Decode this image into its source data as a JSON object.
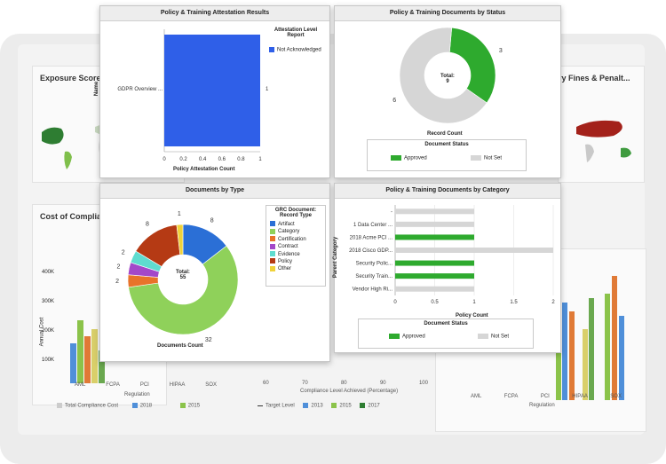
{
  "background": {
    "card_left_title": "Exposure Score b",
    "card_right_title": "ry Fines & Penalt...",
    "card_cost_title": "Cost of Complianc",
    "bottom_legend_left": [
      "Total Compliance Cost",
      "2018",
      "2015"
    ],
    "bottom_legend_mid": [
      "Target Level",
      "2013",
      "2015",
      "2017"
    ],
    "bottom_axis_left": [
      "AML",
      "FCPA",
      "PCI",
      "HIPAA",
      "SOX"
    ],
    "bottom_axis_right": [
      "AML",
      "FCPA",
      "PCI",
      "HIPAA",
      "SOX"
    ],
    "x_title_left": "Regulation",
    "x_title_mid": "Compliance Level Achieved (Percentage)",
    "x_title_right": "Regulation",
    "mid_ticks": [
      "60",
      "70",
      "80",
      "90",
      "100"
    ],
    "left_y_ticks": [
      "400K",
      "300K",
      "200K",
      "100K"
    ],
    "left_y_label": "Annual Cost"
  },
  "panel_attestation": {
    "title": "Policy & Training Attestation Results",
    "y_title": "Name",
    "x_title": "Policy Attestation Count",
    "legend_title": "Attestation Level Report",
    "legend_items": [
      {
        "label": "Not Acknowledged",
        "color": "#2f5fe8"
      }
    ]
  },
  "panel_docs_status": {
    "title": "Policy & Training Documents by Status",
    "center_label": "Total:",
    "center_value": "9",
    "x_title": "Record Count",
    "legend_title": "Document Status",
    "legend_items": [
      {
        "label": "Approved",
        "color": "#2eaa2e"
      },
      {
        "label": "Not Set",
        "color": "#d6d6d6"
      }
    ]
  },
  "panel_docs_type": {
    "title": "Documents by Type",
    "center_label": "Total:",
    "center_value": "55",
    "x_title": "Documents Count",
    "legend_title": "GRC Document: Record Type",
    "legend_items": [
      {
        "label": "Artifact",
        "color": "#2b6fd6"
      },
      {
        "label": "Category",
        "color": "#8fd15a"
      },
      {
        "label": "Certification",
        "color": "#e8732a"
      },
      {
        "label": "Contract",
        "color": "#a348c9"
      },
      {
        "label": "Evidence",
        "color": "#5fdccf"
      },
      {
        "label": "Policy",
        "color": "#b53a14"
      },
      {
        "label": "Other",
        "color": "#f0d23a"
      }
    ]
  },
  "panel_docs_category": {
    "title": "Policy & Training Documents by Category",
    "y_title": "Parent Category",
    "x_title": "Policy Count",
    "legend_title": "Document Status",
    "legend_items": [
      {
        "label": "Approved",
        "color": "#2eaa2e"
      },
      {
        "label": "Not Set",
        "color": "#d6d6d6"
      }
    ]
  },
  "chart_data": [
    {
      "type": "bar",
      "orientation": "horizontal",
      "categories": [
        "GDPR Overview ..."
      ],
      "series": [
        {
          "name": "Not Acknowledged",
          "values": [
            1
          ]
        }
      ],
      "xlim": [
        0,
        1
      ],
      "xticks": [
        "0",
        "0.2",
        "0.4",
        "0.6",
        "0.8",
        "1"
      ]
    },
    {
      "type": "pie",
      "labels": [
        "Approved",
        "Not Set"
      ],
      "values": [
        3,
        6
      ],
      "colors": [
        "#2eaa2e",
        "#d6d6d6"
      ]
    },
    {
      "type": "pie",
      "labels": [
        "Artifact",
        "Category",
        "Certification",
        "Contract",
        "Evidence",
        "Policy",
        "Other"
      ],
      "values": [
        8,
        32,
        2,
        2,
        2,
        8,
        1
      ],
      "colors": [
        "#2b6fd6",
        "#8fd15a",
        "#e8732a",
        "#a348c9",
        "#5fdccf",
        "#b53a14",
        "#f0d23a"
      ]
    },
    {
      "type": "bar",
      "orientation": "horizontal",
      "stacked": true,
      "categories": [
        "-",
        "1 Data Center ...",
        "2018 Acme PCI ...",
        "2018 Cisco GDP...",
        "Security Polic...",
        "Security Train...",
        "Vendor High Ri..."
      ],
      "series": [
        {
          "name": "Approved",
          "values": [
            0,
            0,
            1,
            0,
            1,
            1,
            0
          ]
        },
        {
          "name": "Not Set",
          "values": [
            1,
            1,
            0,
            2,
            0,
            0,
            1
          ]
        }
      ],
      "xlim": [
        0,
        2
      ],
      "xticks": [
        "0",
        "0.5",
        "1",
        "1.5",
        "2"
      ]
    }
  ]
}
